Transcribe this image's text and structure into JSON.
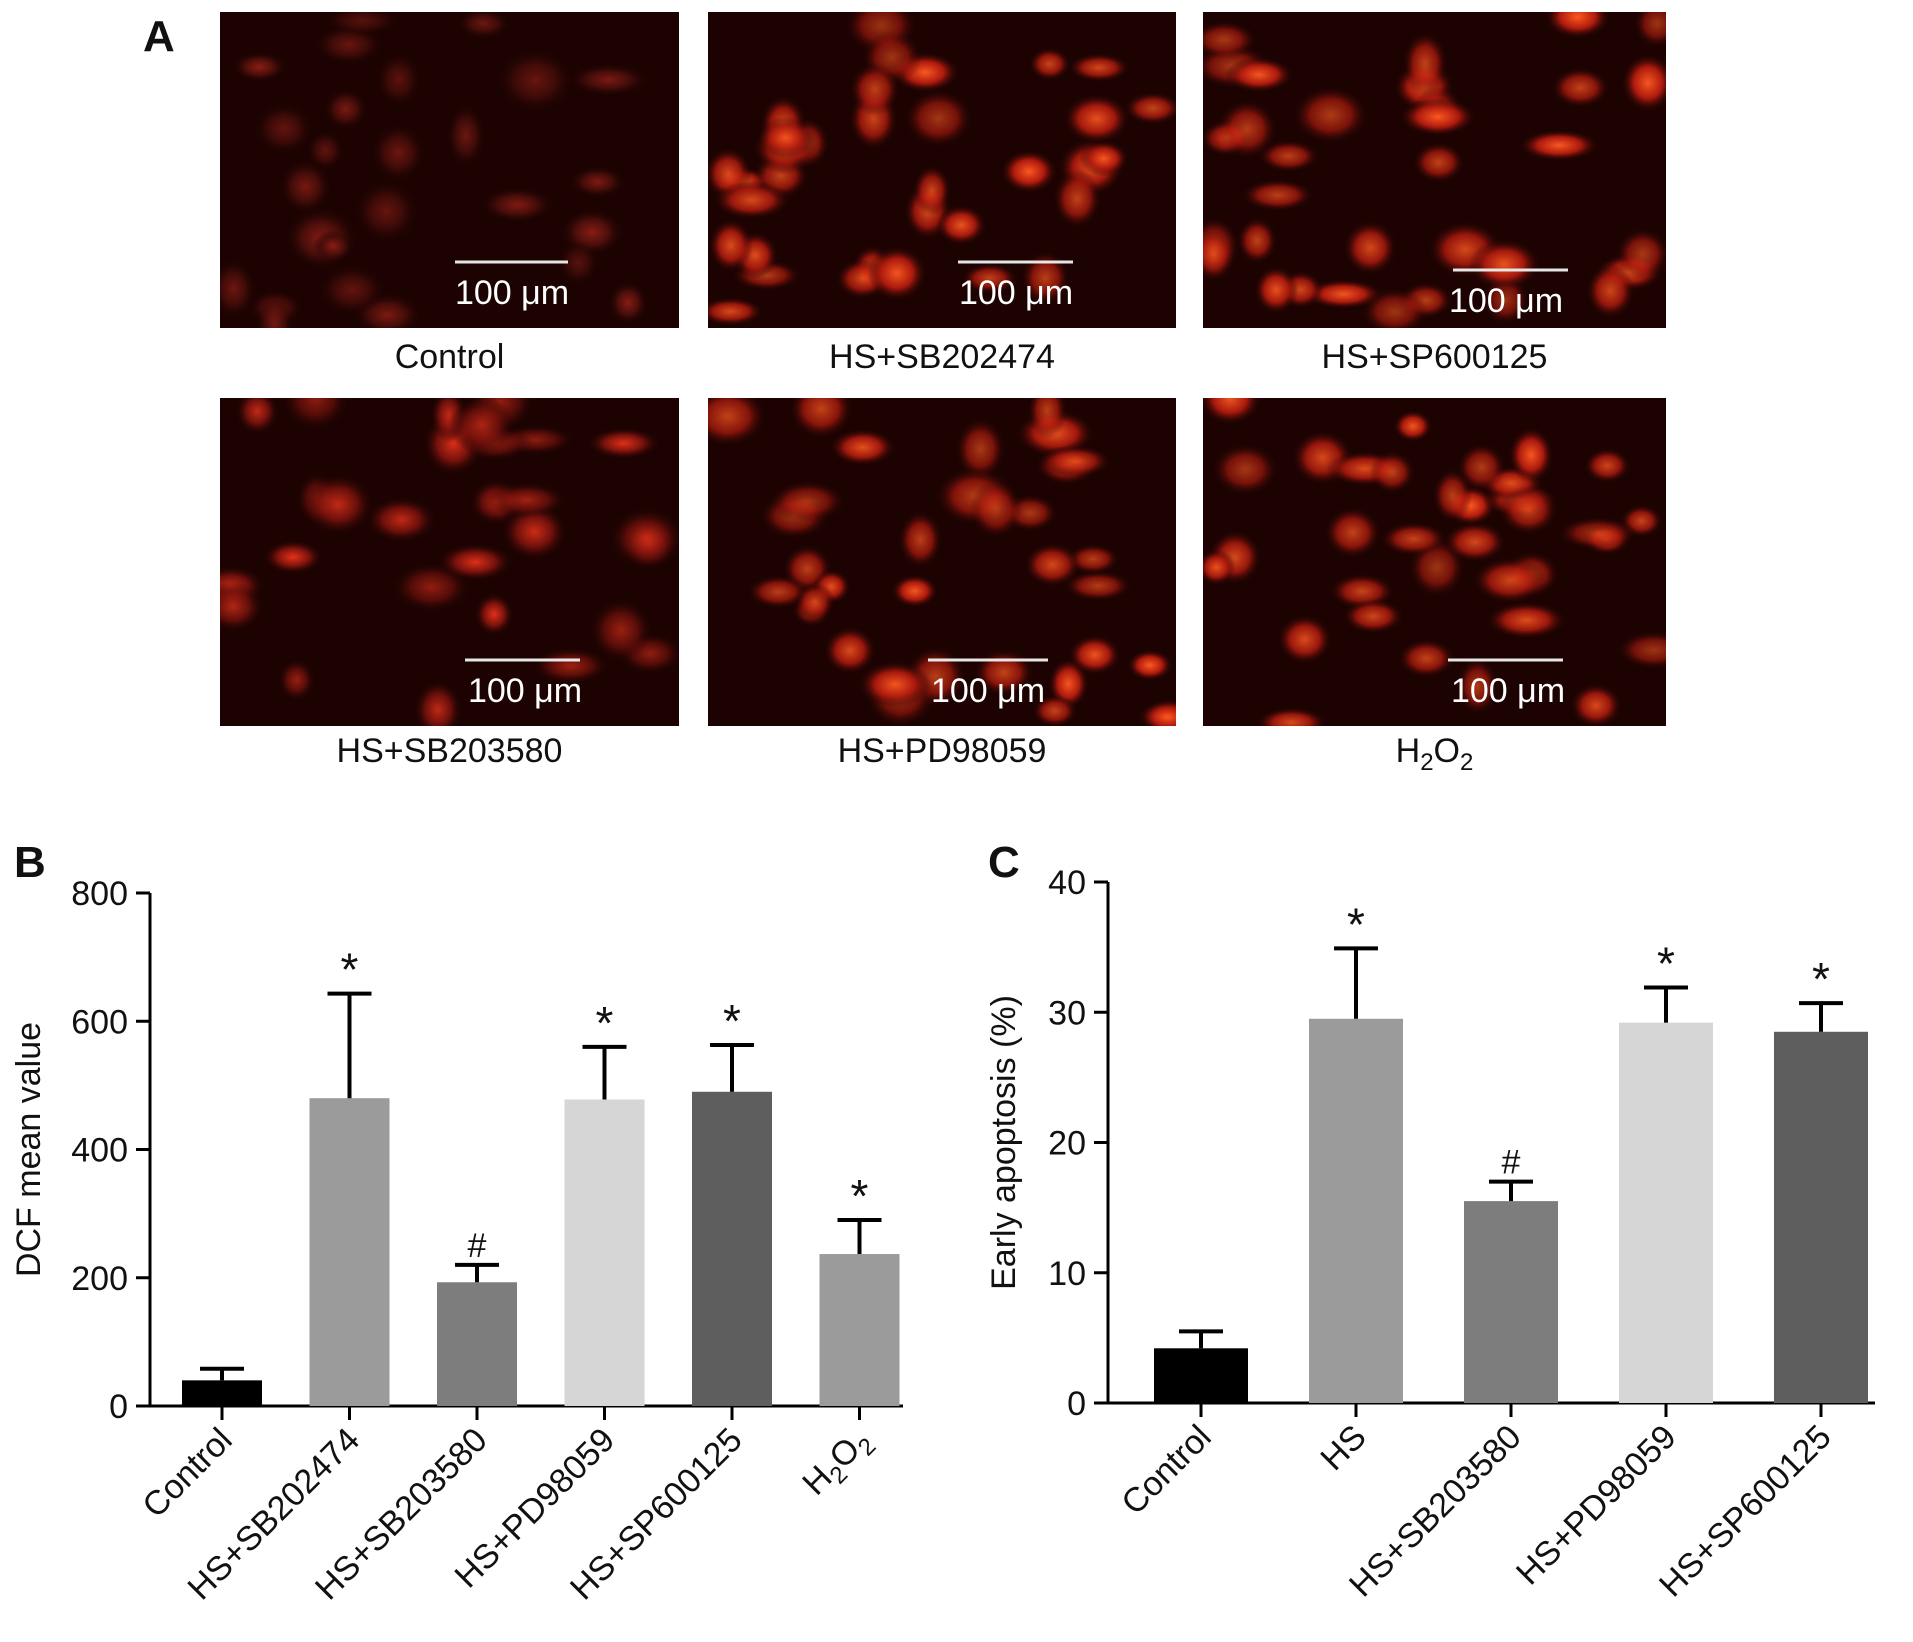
{
  "panels": {
    "a_letter": "A",
    "b_letter": "B",
    "c_letter": "C"
  },
  "micrographs": [
    {
      "caption": "Control",
      "scale_bar": "100 μm",
      "intensity": 0.35
    },
    {
      "caption": "HS+SB202474",
      "scale_bar": "100 μm",
      "intensity": 1.0
    },
    {
      "caption": "HS+SP600125",
      "scale_bar": "100 μm",
      "intensity": 0.85
    },
    {
      "caption": "HS+SB203580",
      "scale_bar": "100 μm",
      "intensity": 0.6
    },
    {
      "caption": "HS+PD98059",
      "scale_bar": "100 μm",
      "intensity": 0.85
    },
    {
      "caption_main": "H",
      "caption_sub1": "2",
      "caption_mid": "O",
      "caption_sub2": "2",
      "scale_bar": "100 μm",
      "intensity": 0.8
    }
  ],
  "colors": {
    "background_cell": "#1a0000",
    "cell_bright": "#ff3a10",
    "bar_black": "#000000",
    "bar_mid_gray": "#9b9b9b",
    "bar_dark_gray": "#7d7d7d",
    "bar_light_gray": "#d6d6d6",
    "bar_darker_gray": "#5e5e5e"
  },
  "chart_data": [
    {
      "type": "bar",
      "panel": "B",
      "ylabel": "DCF mean value",
      "ylim": [
        0,
        800
      ],
      "yticks": [
        "0",
        "200",
        "400",
        "600",
        "800"
      ],
      "categories": [
        "Control",
        "HS+SB202474",
        "HS+SB203580",
        "HS+PD98059",
        "HS+SP600125",
        "H2O2"
      ],
      "values": [
        40,
        480,
        193,
        478,
        490,
        237
      ],
      "errors": [
        18,
        163,
        27,
        82,
        73,
        53
      ],
      "annotations": [
        "",
        "*",
        "#",
        "*",
        "*",
        "*"
      ],
      "bar_colors": [
        "#000000",
        "#9b9b9b",
        "#7d7d7d",
        "#d6d6d6",
        "#5e5e5e",
        "#9b9b9b"
      ]
    },
    {
      "type": "bar",
      "panel": "C",
      "ylabel": "Early apoptosis (%)",
      "ylim": [
        0,
        40
      ],
      "yticks": [
        "0",
        "10",
        "20",
        "30",
        "40"
      ],
      "categories": [
        "Control",
        "HS",
        "HS+SB203580",
        "HS+PD98059",
        "HS+SP600125"
      ],
      "values": [
        4.2,
        29.5,
        15.5,
        29.2,
        28.5
      ],
      "errors": [
        1.3,
        5.4,
        1.5,
        2.7,
        2.2
      ],
      "annotations": [
        "",
        "*",
        "#",
        "*",
        "*"
      ],
      "bar_colors": [
        "#000000",
        "#9b9b9b",
        "#7d7d7d",
        "#d6d6d6",
        "#5e5e5e"
      ]
    }
  ]
}
